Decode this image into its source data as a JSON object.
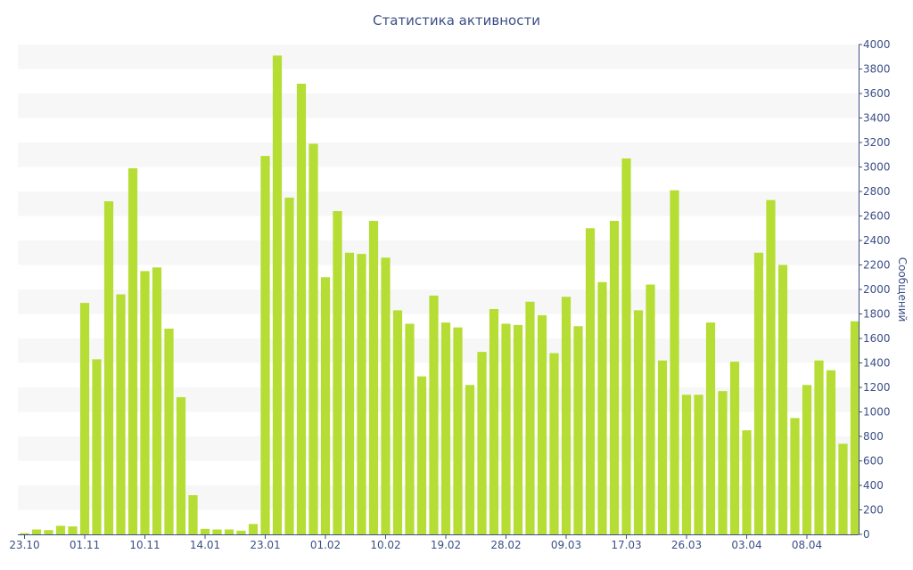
{
  "chart_data": {
    "type": "bar",
    "title": "Статистика активности",
    "xlabel": "",
    "ylabel": "Сообщений",
    "ylim": [
      0,
      4000
    ],
    "yticks": [
      0,
      200,
      400,
      600,
      800,
      1000,
      1200,
      1400,
      1600,
      1800,
      2000,
      2200,
      2400,
      2600,
      2800,
      3000,
      3200,
      3400,
      3600,
      3800,
      4000
    ],
    "y_axis_side": "right",
    "grid": "alternating horizontal bands",
    "legend": "none",
    "colors": {
      "bar": "#b5dd34",
      "band": "#f7f7f7",
      "text": "#3c4f86",
      "axis": "#3c4f86"
    },
    "x_tick_labels": [
      {
        "index": 0,
        "label": "23.10"
      },
      {
        "index": 5,
        "label": "01.11"
      },
      {
        "index": 10,
        "label": "10.11"
      },
      {
        "index": 15,
        "label": "14.01"
      },
      {
        "index": 20,
        "label": "23.01"
      },
      {
        "index": 25,
        "label": "01.02"
      },
      {
        "index": 30,
        "label": "10.02"
      },
      {
        "index": 35,
        "label": "19.02"
      },
      {
        "index": 40,
        "label": "28.02"
      },
      {
        "index": 45,
        "label": "09.03"
      },
      {
        "index": 50,
        "label": "17.03"
      },
      {
        "index": 55,
        "label": "26.03"
      },
      {
        "index": 60,
        "label": "03.04"
      },
      {
        "index": 65,
        "label": "08.04"
      }
    ],
    "values": [
      10,
      40,
      35,
      70,
      65,
      1890,
      1430,
      2720,
      1960,
      2990,
      2150,
      2180,
      1680,
      1120,
      320,
      45,
      40,
      40,
      30,
      85,
      3090,
      3910,
      2750,
      3680,
      3190,
      2100,
      2640,
      2300,
      2290,
      2560,
      2260,
      1830,
      1720,
      1290,
      1950,
      1730,
      1690,
      1220,
      1490,
      1840,
      1720,
      1710,
      1900,
      1790,
      1480,
      1940,
      1700,
      2500,
      2060,
      2560,
      3070,
      1830,
      2040,
      1420,
      2810,
      1140,
      1140,
      1730,
      1170,
      1410,
      850,
      2300,
      2730,
      2200,
      950,
      1220,
      1420,
      1340,
      740,
      1740
    ]
  }
}
